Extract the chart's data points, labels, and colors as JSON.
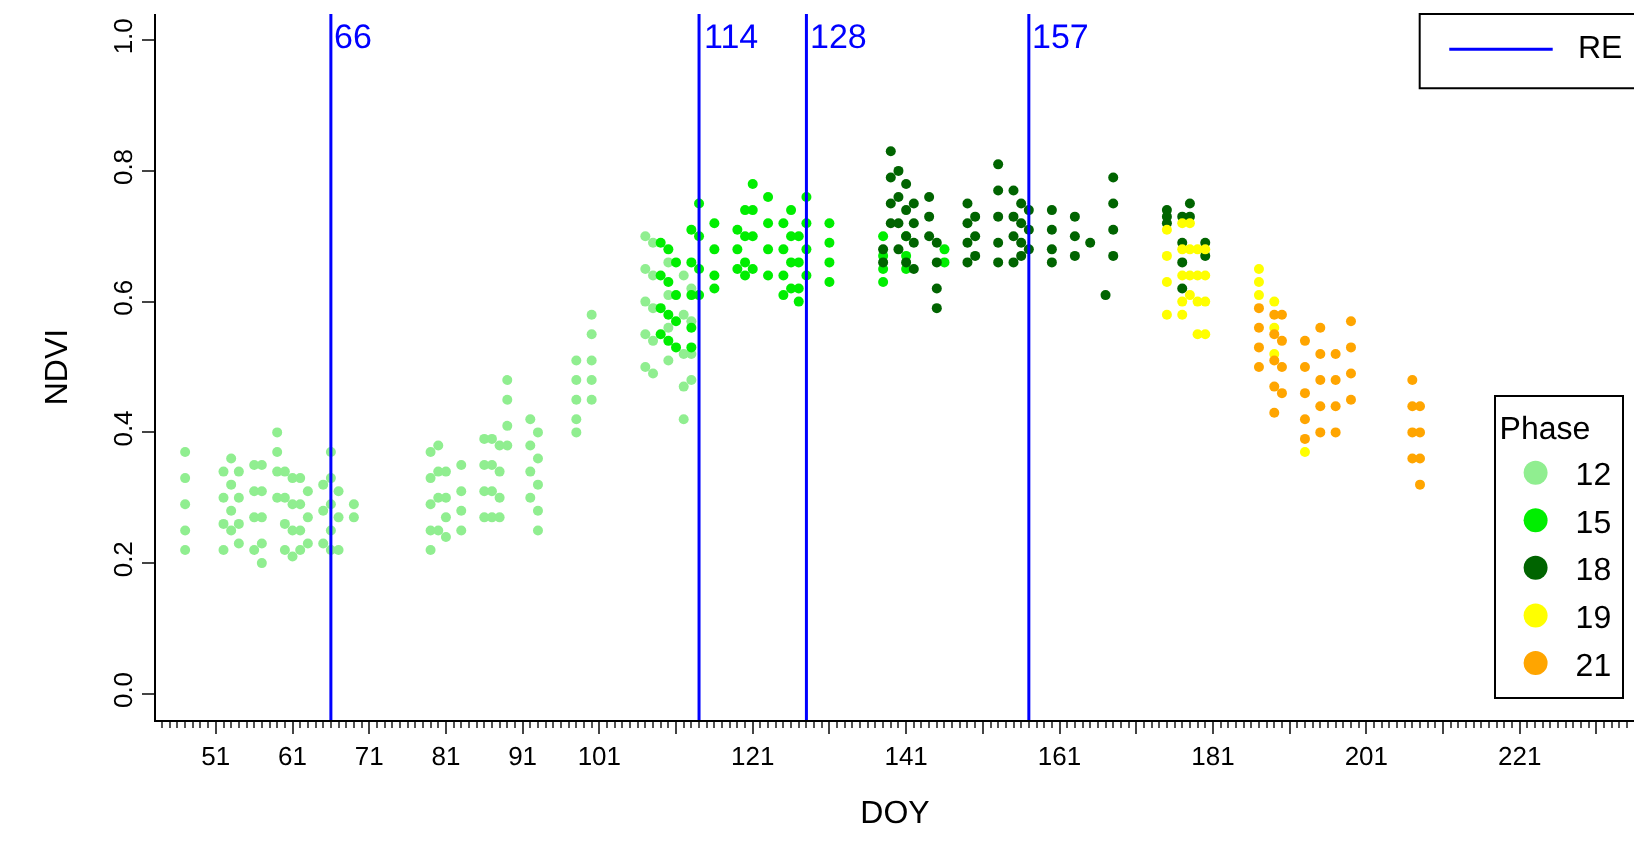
{
  "chart_data": {
    "type": "scatter",
    "xlabel": "DOY",
    "ylabel": "NDVI",
    "legend_title": "Phase",
    "legend": "right",
    "marker": "circle",
    "xlim": [
      43.2,
      235.9
    ],
    "ylim": [
      -0.04,
      1.04
    ],
    "xticks": [
      51,
      61,
      71,
      81,
      91,
      101,
      {
        "value": 111,
        "label": null
      },
      121,
      {
        "value": 131,
        "label": null
      },
      141,
      {
        "value": 151,
        "label": null
      },
      161,
      {
        "value": 171,
        "label": null
      },
      181,
      {
        "value": 191,
        "label": null
      },
      201,
      {
        "value": 211,
        "label": null
      },
      221,
      {
        "value": 231,
        "label": null
      }
    ],
    "yticks": [
      {
        "value": 0,
        "label": "0.0"
      },
      {
        "value": 0.2,
        "label": "0.2"
      },
      {
        "value": 0.4,
        "label": "0.4"
      },
      {
        "value": 0.6,
        "label": "0.6"
      },
      {
        "value": 0.8,
        "label": "0.8"
      },
      {
        "value": 1,
        "label": "1.0"
      }
    ],
    "ref_lines": [
      {
        "axis": "x",
        "value": 66,
        "label": "66",
        "color": "#0000ff"
      },
      {
        "axis": "x",
        "value": 114,
        "label": "114",
        "color": "#0000ff"
      },
      {
        "axis": "x",
        "value": 128,
        "label": "128",
        "color": "#0000ff"
      },
      {
        "axis": "x",
        "value": 157,
        "label": "157",
        "color": "#0000ff"
      }
    ],
    "annotations": [
      "RE"
    ],
    "series": [
      {
        "name": "12",
        "color": "#90ee90",
        "x": [
          47,
          47,
          47,
          47,
          47,
          52,
          52,
          52,
          52,
          53,
          53,
          53,
          53,
          54,
          54,
          54,
          54,
          56,
          56,
          56,
          56,
          57,
          57,
          57,
          57,
          57,
          59,
          59,
          59,
          59,
          60,
          60,
          60,
          60,
          61,
          61,
          61,
          61,
          62,
          62,
          62,
          62,
          63,
          63,
          63,
          65,
          65,
          65,
          66,
          66,
          66,
          66,
          66,
          67,
          67,
          67,
          69,
          69,
          79,
          79,
          79,
          79,
          79,
          80,
          80,
          80,
          80,
          81,
          81,
          81,
          81,
          83,
          83,
          83,
          83,
          86,
          86,
          86,
          86,
          87,
          87,
          87,
          87,
          88,
          88,
          88,
          88,
          89,
          89,
          89,
          89,
          92,
          92,
          92,
          92,
          93,
          93,
          93,
          93,
          93,
          98,
          98,
          98,
          98,
          98,
          100,
          100,
          100,
          100,
          100,
          107,
          107,
          107,
          107,
          107,
          108,
          108,
          108,
          108,
          108,
          110,
          110,
          110,
          110,
          112,
          112,
          112,
          112,
          112,
          113,
          113,
          113,
          113
        ],
        "values": [
          0.37,
          0.33,
          0.29,
          0.25,
          0.22,
          0.34,
          0.3,
          0.26,
          0.22,
          0.36,
          0.32,
          0.28,
          0.25,
          0.34,
          0.3,
          0.26,
          0.23,
          0.35,
          0.31,
          0.27,
          0.22,
          0.35,
          0.31,
          0.27,
          0.23,
          0.2,
          0.4,
          0.37,
          0.34,
          0.3,
          0.34,
          0.3,
          0.26,
          0.22,
          0.33,
          0.29,
          0.25,
          0.21,
          0.33,
          0.29,
          0.25,
          0.22,
          0.31,
          0.27,
          0.23,
          0.32,
          0.28,
          0.23,
          0.37,
          0.33,
          0.29,
          0.25,
          0.22,
          0.31,
          0.27,
          0.22,
          0.29,
          0.27,
          0.37,
          0.33,
          0.29,
          0.25,
          0.22,
          0.38,
          0.34,
          0.3,
          0.25,
          0.34,
          0.3,
          0.27,
          0.24,
          0.35,
          0.31,
          0.28,
          0.25,
          0.39,
          0.35,
          0.31,
          0.27,
          0.39,
          0.35,
          0.31,
          0.27,
          0.38,
          0.34,
          0.3,
          0.27,
          0.48,
          0.45,
          0.41,
          0.38,
          0.42,
          0.38,
          0.34,
          0.3,
          0.4,
          0.36,
          0.32,
          0.28,
          0.25,
          0.51,
          0.48,
          0.45,
          0.42,
          0.4,
          0.58,
          0.55,
          0.51,
          0.48,
          0.45,
          0.7,
          0.65,
          0.6,
          0.55,
          0.5,
          0.69,
          0.64,
          0.59,
          0.54,
          0.49,
          0.66,
          0.61,
          0.56,
          0.51,
          0.64,
          0.58,
          0.52,
          0.47,
          0.42,
          0.62,
          0.57,
          0.52,
          0.48
        ]
      },
      {
        "name": "15",
        "color": "#00ee00",
        "x": [
          109,
          109,
          109,
          109,
          110,
          110,
          110,
          110,
          111,
          111,
          111,
          111,
          113,
          113,
          113,
          113,
          113,
          114,
          114,
          114,
          114,
          116,
          116,
          116,
          116,
          119,
          119,
          119,
          120,
          120,
          120,
          120,
          121,
          121,
          121,
          121,
          123,
          123,
          123,
          123,
          125,
          125,
          125,
          125,
          126,
          126,
          126,
          126,
          127,
          127,
          127,
          127,
          128,
          128,
          128,
          128,
          131,
          131,
          131,
          131,
          138,
          138,
          138,
          138,
          141,
          141,
          141,
          146,
          146
        ],
        "values": [
          0.69,
          0.64,
          0.59,
          0.55,
          0.68,
          0.63,
          0.58,
          0.54,
          0.66,
          0.61,
          0.57,
          0.53,
          0.71,
          0.66,
          0.61,
          0.56,
          0.53,
          0.75,
          0.7,
          0.65,
          0.61,
          0.72,
          0.68,
          0.64,
          0.62,
          0.71,
          0.68,
          0.65,
          0.74,
          0.7,
          0.66,
          0.64,
          0.78,
          0.74,
          0.7,
          0.65,
          0.76,
          0.72,
          0.68,
          0.64,
          0.72,
          0.68,
          0.64,
          0.61,
          0.74,
          0.7,
          0.66,
          0.62,
          0.7,
          0.66,
          0.62,
          0.6,
          0.76,
          0.72,
          0.68,
          0.64,
          0.72,
          0.69,
          0.66,
          0.63,
          0.7,
          0.67,
          0.65,
          0.63,
          0.7,
          0.67,
          0.65,
          0.68,
          0.66
        ]
      },
      {
        "name": "18",
        "color": "#006400",
        "x": [
          138,
          138,
          139,
          139,
          139,
          139,
          140,
          140,
          140,
          140,
          141,
          141,
          141,
          141,
          142,
          142,
          142,
          142,
          144,
          144,
          144,
          145,
          145,
          145,
          145,
          149,
          149,
          149,
          149,
          150,
          150,
          150,
          153,
          153,
          153,
          153,
          153,
          155,
          155,
          155,
          155,
          156,
          156,
          156,
          156,
          157,
          157,
          157,
          160,
          160,
          160,
          160,
          163,
          163,
          163,
          165,
          167,
          168,
          168,
          168,
          168,
          175,
          175,
          175,
          177,
          177,
          177,
          177,
          178,
          178,
          180,
          180
        ],
        "values": [
          0.68,
          0.66,
          0.83,
          0.79,
          0.75,
          0.72,
          0.8,
          0.76,
          0.72,
          0.68,
          0.78,
          0.74,
          0.7,
          0.66,
          0.75,
          0.72,
          0.69,
          0.65,
          0.76,
          0.73,
          0.7,
          0.69,
          0.66,
          0.62,
          0.59,
          0.75,
          0.72,
          0.69,
          0.66,
          0.73,
          0.7,
          0.67,
          0.81,
          0.77,
          0.73,
          0.69,
          0.66,
          0.77,
          0.73,
          0.7,
          0.66,
          0.75,
          0.72,
          0.69,
          0.67,
          0.74,
          0.71,
          0.68,
          0.74,
          0.71,
          0.68,
          0.66,
          0.73,
          0.7,
          0.67,
          0.69,
          0.61,
          0.79,
          0.75,
          0.71,
          0.67,
          0.74,
          0.73,
          0.72,
          0.73,
          0.69,
          0.66,
          0.62,
          0.75,
          0.73,
          0.69,
          0.67
        ]
      },
      {
        "name": "19",
        "color": "#ffff00",
        "x": [
          175,
          175,
          175,
          175,
          177,
          177,
          177,
          177,
          177,
          178,
          178,
          178,
          178,
          179,
          179,
          179,
          179,
          180,
          180,
          180,
          180,
          187,
          187,
          187,
          189,
          189,
          189,
          193
        ],
        "values": [
          0.71,
          0.67,
          0.63,
          0.58,
          0.72,
          0.68,
          0.64,
          0.6,
          0.58,
          0.72,
          0.68,
          0.64,
          0.61,
          0.68,
          0.64,
          0.6,
          0.55,
          0.68,
          0.64,
          0.6,
          0.55,
          0.65,
          0.63,
          0.61,
          0.6,
          0.56,
          0.52,
          0.37
        ]
      },
      {
        "name": "21",
        "color": "#ffa500",
        "x": [
          187,
          187,
          187,
          187,
          189,
          189,
          189,
          189,
          189,
          190,
          190,
          190,
          190,
          193,
          193,
          193,
          193,
          193,
          195,
          195,
          195,
          195,
          195,
          197,
          197,
          197,
          197,
          199,
          199,
          199,
          199,
          207,
          207,
          207,
          207,
          208,
          208,
          208,
          208
        ],
        "values": [
          0.59,
          0.56,
          0.53,
          0.5,
          0.58,
          0.55,
          0.51,
          0.47,
          0.43,
          0.58,
          0.54,
          0.5,
          0.46,
          0.54,
          0.5,
          0.46,
          0.42,
          0.39,
          0.56,
          0.52,
          0.48,
          0.44,
          0.4,
          0.52,
          0.48,
          0.44,
          0.4,
          0.57,
          0.53,
          0.49,
          0.45,
          0.48,
          0.44,
          0.4,
          0.36,
          0.44,
          0.4,
          0.36,
          0.32
        ]
      }
    ]
  }
}
